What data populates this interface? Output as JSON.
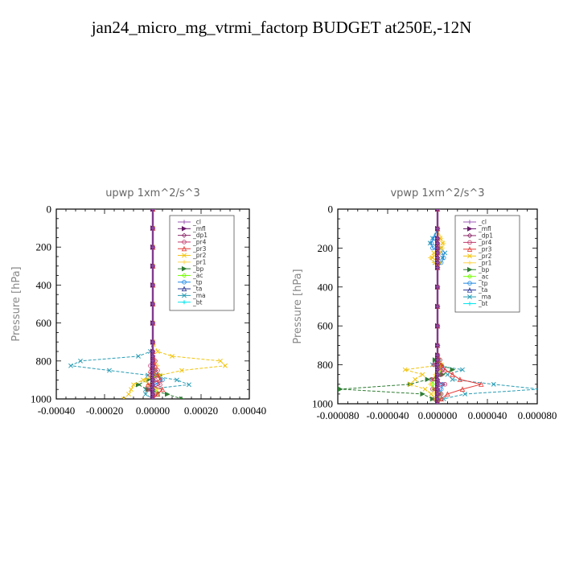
{
  "page": {
    "title": "jan24_micro_mg_vtrmi_factorp  BUDGET at250E,-12N"
  },
  "chart_data": [
    {
      "type": "line",
      "title": "upwp   1xm^2/s^3",
      "ylabel": "Pressure [hPa]",
      "xlabel": "",
      "xlim": [
        -0.0004,
        0.0004
      ],
      "ylim": [
        1000,
        0
      ],
      "x_tick_labels": [
        "-0.00040",
        "-0.00020",
        "0.00000",
        "0.00020",
        "0.00040"
      ],
      "x_ticks": [
        -0.0004,
        -0.0002,
        0,
        0.0002,
        0.0004
      ],
      "y_tick_labels": [
        "0",
        "200",
        "400",
        "600",
        "800",
        "1000"
      ],
      "y_ticks": [
        0,
        200,
        400,
        600,
        800,
        1000
      ],
      "legend_placement": "top-right",
      "pressure": [
        0,
        100,
        200,
        300,
        400,
        500,
        600,
        700,
        750,
        775,
        800,
        825,
        850,
        875,
        900,
        925,
        950,
        975,
        1000
      ],
      "series": [
        {
          "name": "_cl",
          "color": "#9b59b6",
          "values": [
            0,
            0,
            0,
            0,
            0,
            0,
            0,
            0,
            0,
            0,
            0,
            0,
            0,
            0,
            0,
            0,
            0,
            0,
            0
          ]
        },
        {
          "name": "_mfl",
          "color": "#6a1b6a",
          "values": [
            0,
            0,
            0,
            0,
            0,
            0,
            0,
            0,
            0,
            0,
            0,
            0,
            0,
            0,
            0,
            0,
            0,
            0,
            0
          ]
        },
        {
          "name": "_dp1",
          "color": "#8e2c6c",
          "values": [
            0,
            0,
            0,
            0,
            0,
            0,
            0,
            0,
            0,
            0,
            0,
            0,
            0,
            0,
            0,
            0,
            0,
            0,
            0
          ]
        },
        {
          "name": "_pr4",
          "color": "#c0396b",
          "values": [
            0,
            0,
            0,
            0,
            0,
            0,
            0,
            0,
            0,
            0,
            1e-05,
            -1e-05,
            2e-05,
            -1e-05,
            1e-05,
            3e-05,
            -2e-05,
            1e-05,
            0
          ]
        },
        {
          "name": "_pr3",
          "color": "#e53935",
          "values": [
            0,
            0,
            0,
            0,
            0,
            0,
            0,
            0,
            0,
            0,
            0,
            1e-05,
            -1e-05,
            2e-05,
            3e-05,
            -2e-05,
            4e-05,
            2e-05,
            0
          ]
        },
        {
          "name": "_pr2",
          "color": "#f1c40f",
          "values": [
            0,
            0,
            0,
            0,
            0,
            0,
            0,
            0,
            2e-05,
            8e-05,
            0.00028,
            0.0003,
            0.00012,
            3e-05,
            -4e-05,
            -8e-05,
            -9e-05,
            -0.0001,
            -0.00012
          ]
        },
        {
          "name": "_pr1",
          "color": "#ffd54f",
          "values": [
            0,
            0,
            0,
            0,
            0,
            0,
            0,
            0,
            0,
            0,
            1e-05,
            2e-05,
            1e-05,
            -1e-05,
            -3e-05,
            -2e-05,
            2e-05,
            1e-05,
            0
          ]
        },
        {
          "name": "_bp",
          "color": "#2e7d32",
          "values": [
            0,
            0,
            0,
            0,
            0,
            0,
            0,
            0,
            0,
            0,
            0,
            0,
            1e-05,
            3e-05,
            -2e-05,
            -6e-05,
            -2e-05,
            6e-05,
            0.00012
          ]
        },
        {
          "name": "_ac",
          "color": "#76ff03",
          "values": [
            0,
            0,
            0,
            0,
            0,
            0,
            0,
            0,
            0,
            0,
            0,
            0,
            0,
            1e-05,
            0,
            -1e-05,
            1e-05,
            2e-05,
            0
          ]
        },
        {
          "name": "_tp",
          "color": "#1e88e5",
          "values": [
            0,
            0,
            0,
            0,
            0,
            0,
            0,
            0,
            0,
            0,
            0,
            0,
            0,
            2e-05,
            4e-05,
            1e-05,
            -1e-05,
            2e-05,
            0
          ]
        },
        {
          "name": "_ta",
          "color": "#283593",
          "values": [
            0,
            0,
            0,
            0,
            0,
            0,
            0,
            0,
            0,
            0,
            0,
            0,
            0,
            0,
            0,
            0,
            0,
            0,
            0
          ]
        },
        {
          "name": "_ma",
          "color": "#2a9db5",
          "values": [
            0,
            0,
            0,
            0,
            0,
            0,
            0,
            0,
            -1e-05,
            -6e-05,
            -0.0003,
            -0.00034,
            -0.00018,
            -2e-05,
            0.0001,
            0.00015,
            -3e-05,
            -3e-05,
            0
          ]
        },
        {
          "name": "_bt",
          "color": "#00e5ee",
          "values": [
            0,
            0,
            0,
            0,
            0,
            0,
            0,
            0,
            0,
            0,
            0,
            0,
            0,
            0,
            0,
            0,
            0,
            0,
            0
          ]
        }
      ]
    },
    {
      "type": "line",
      "title": "vpwp   1xm^2/s^3",
      "ylabel": "Pressure [hPa]",
      "xlabel": "",
      "xlim": [
        -8e-05,
        8e-05
      ],
      "ylim": [
        1000,
        0
      ],
      "x_tick_labels": [
        "-0.000080",
        "-0.000040",
        "0.000000",
        "0.000040",
        "0.000080"
      ],
      "x_ticks": [
        -8e-05,
        -4e-05,
        0,
        4e-05,
        8e-05
      ],
      "y_tick_labels": [
        "0",
        "200",
        "400",
        "600",
        "800",
        "1000"
      ],
      "y_ticks": [
        0,
        200,
        400,
        600,
        800,
        1000
      ],
      "legend_placement": "top-right",
      "pressure": [
        0,
        100,
        150,
        175,
        200,
        225,
        250,
        275,
        300,
        400,
        500,
        600,
        700,
        750,
        775,
        800,
        825,
        850,
        875,
        900,
        925,
        950,
        975,
        1000
      ],
      "series": [
        {
          "name": "_cl",
          "color": "#9b59b6",
          "values": [
            0,
            0,
            0,
            0,
            0,
            0,
            0,
            0,
            0,
            0,
            0,
            0,
            0,
            0,
            0,
            0,
            0,
            0,
            0,
            0,
            0,
            0,
            0,
            0
          ]
        },
        {
          "name": "_mfl",
          "color": "#6a1b6a",
          "values": [
            0,
            0,
            0,
            0,
            0,
            0,
            0,
            0,
            0,
            0,
            0,
            0,
            0,
            0,
            0,
            0,
            0,
            0,
            0,
            0,
            0,
            0,
            0,
            0
          ]
        },
        {
          "name": "_dp1",
          "color": "#8e2c6c",
          "values": [
            0,
            0,
            0,
            0,
            0,
            0,
            0,
            0,
            0,
            0,
            0,
            0,
            0,
            0,
            0,
            0,
            0,
            0,
            0,
            0,
            0,
            0,
            0,
            0
          ]
        },
        {
          "name": "_pr4",
          "color": "#c0396b",
          "values": [
            0,
            0,
            0,
            0,
            0,
            0,
            0,
            0,
            0,
            0,
            0,
            0,
            0,
            0,
            2e-06,
            -3e-06,
            4e-06,
            3e-06,
            -5e-06,
            6e-06,
            -4e-06,
            3e-06,
            -2e-06,
            0
          ]
        },
        {
          "name": "_pr3",
          "color": "#e53935",
          "values": [
            0,
            0,
            0,
            0,
            0,
            0,
            0,
            0,
            0,
            0,
            0,
            0,
            0,
            0,
            0,
            3e-06,
            6e-06,
            1.2e-05,
            1.8e-05,
            3.5e-05,
            2e-05,
            8e-06,
            3e-06,
            0
          ]
        },
        {
          "name": "_pr2",
          "color": "#f1c40f",
          "values": [
            0,
            0,
            2e-06,
            4e-06,
            2e-06,
            -3e-06,
            -4e-06,
            2e-06,
            0,
            0,
            0,
            0,
            0,
            0,
            1e-06,
            3e-06,
            -2.6e-05,
            -1.2e-05,
            -1.8e-05,
            -2.2e-05,
            -1e-05,
            -5e-06,
            -2e-06,
            0
          ]
        },
        {
          "name": "_pr1",
          "color": "#ffd54f",
          "values": [
            0,
            0,
            3e-06,
            5e-06,
            4e-06,
            2e-06,
            -6e-06,
            -3e-06,
            0,
            0,
            0,
            0,
            0,
            0,
            1e-06,
            2e-06,
            3e-06,
            -2e-06,
            -4e-06,
            -6e-06,
            -3e-06,
            -2e-06,
            -1e-06,
            0
          ]
        },
        {
          "name": "_bp",
          "color": "#2e7d32",
          "values": [
            0,
            0,
            0,
            0,
            0,
            0,
            0,
            0,
            0,
            0,
            0,
            0,
            0,
            0,
            -2e-06,
            3e-06,
            1.2e-05,
            4e-06,
            -8e-06,
            -2.2e-05,
            -7.8e-05,
            -1.2e-05,
            -4e-06,
            0
          ]
        },
        {
          "name": "_ac",
          "color": "#76ff03",
          "values": [
            0,
            0,
            0,
            0,
            0,
            0,
            0,
            0,
            0,
            0,
            0,
            0,
            0,
            0,
            0,
            1e-06,
            2e-06,
            2e-06,
            -3e-06,
            -4e-06,
            -3e-06,
            2e-06,
            1e-06,
            0
          ]
        },
        {
          "name": "_tp",
          "color": "#1e88e5",
          "values": [
            0,
            0,
            -3e-06,
            -5e-06,
            -4e-06,
            4e-06,
            5e-06,
            3e-06,
            0,
            0,
            0,
            0,
            0,
            0,
            1e-06,
            2e-06,
            4e-06,
            2e-06,
            -4e-06,
            4e-06,
            3e-06,
            2e-06,
            1e-06,
            0
          ]
        },
        {
          "name": "_ta",
          "color": "#283593",
          "values": [
            0,
            0,
            0,
            0,
            0,
            0,
            0,
            0,
            0,
            0,
            0,
            0,
            0,
            0,
            0,
            0,
            0,
            0,
            0,
            0,
            0,
            0,
            0,
            0
          ]
        },
        {
          "name": "_ma",
          "color": "#2a9db5",
          "values": [
            0,
            0,
            -4e-06,
            -6e-06,
            3e-06,
            6e-06,
            4e-06,
            -2e-06,
            0,
            0,
            0,
            0,
            0,
            0,
            -2e-06,
            -4e-06,
            2e-05,
            8e-06,
            1.2e-05,
            4.5e-05,
            8.2e-05,
            2.2e-05,
            5e-06,
            0
          ]
        },
        {
          "name": "_bt",
          "color": "#00e5ee",
          "values": [
            0,
            0,
            0,
            0,
            0,
            0,
            0,
            0,
            0,
            0,
            0,
            0,
            0,
            0,
            0,
            0,
            0,
            0,
            0,
            0,
            0,
            0,
            0,
            0
          ]
        }
      ]
    }
  ]
}
